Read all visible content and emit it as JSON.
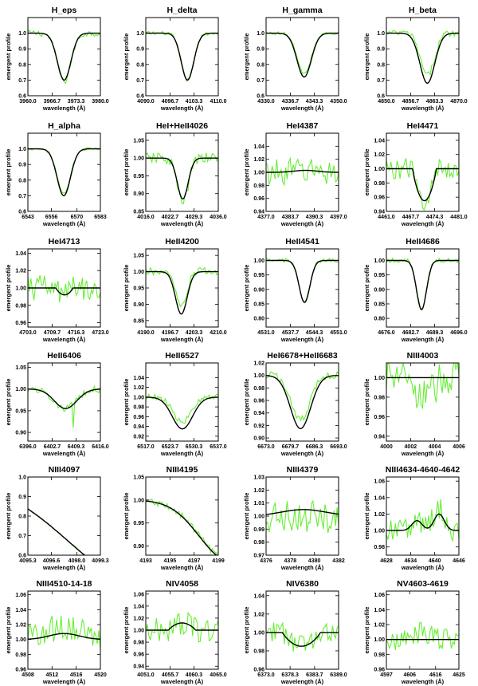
{
  "figure": {
    "xlabel": "wavelength (Å)",
    "ylabel": "emergent profile",
    "observed_color": "#66ee33",
    "model_color": "#000000"
  },
  "chart_data": [
    {
      "type": "line",
      "title": "H_eps",
      "xlim": [
        3960,
        3980
      ],
      "ylim": [
        0.6,
        1.1
      ],
      "xticks": [
        3960,
        3966.7,
        3973.3,
        3980
      ],
      "xticklabels": [
        "3960.0",
        "3966.7",
        "3973.3",
        "3980.0"
      ],
      "yticks": [
        0.6,
        0.7,
        0.8,
        0.9,
        1.0
      ],
      "yticklabels": [
        "0.6",
        "0.7",
        "0.8",
        "0.9",
        "1.0"
      ],
      "model": {
        "center": 3970,
        "depth": 0.3,
        "width": 3.0,
        "type": "abs"
      },
      "obs": {
        "noise": 0.02,
        "offset": -0.01
      }
    },
    {
      "type": "line",
      "title": "H_delta",
      "xlim": [
        4090,
        4110
      ],
      "ylim": [
        0.6,
        1.1
      ],
      "xticks": [
        4090,
        4096.7,
        4103.3,
        4110
      ],
      "xticklabels": [
        "4090.0",
        "4096.7",
        "4103.3",
        "4110.0"
      ],
      "yticks": [
        0.6,
        0.7,
        0.8,
        0.9,
        1.0
      ],
      "yticklabels": [
        "0.6",
        "0.7",
        "0.8",
        "0.9",
        "1.0"
      ],
      "model": {
        "center": 4101.5,
        "depth": 0.3,
        "width": 2.8,
        "type": "abs"
      },
      "obs": {
        "noise": 0.012,
        "offset": 0.0
      }
    },
    {
      "type": "line",
      "title": "H_gamma",
      "xlim": [
        4330,
        4350
      ],
      "ylim": [
        0.6,
        1.1
      ],
      "xticks": [
        4330,
        4336.7,
        4343.3,
        4350
      ],
      "xticklabels": [
        "4330.0",
        "4336.7",
        "4343.3",
        "4350.0"
      ],
      "yticks": [
        0.6,
        0.7,
        0.8,
        0.9,
        1.0
      ],
      "yticklabels": [
        "0.6",
        "0.7",
        "0.8",
        "0.9",
        "1.0"
      ],
      "model": {
        "center": 4340.5,
        "depth": 0.28,
        "width": 3.2,
        "type": "abs"
      },
      "obs": {
        "noise": 0.01,
        "offset": 0.02
      }
    },
    {
      "type": "line",
      "title": "H_beta",
      "xlim": [
        4850,
        4870
      ],
      "ylim": [
        0.6,
        1.1
      ],
      "xticks": [
        4850,
        4856.7,
        4863.3,
        4870
      ],
      "xticklabels": [
        "4850.0",
        "4856.7",
        "4863.3",
        "4870.0"
      ],
      "yticks": [
        0.6,
        0.7,
        0.8,
        0.9,
        1.0
      ],
      "yticklabels": [
        "0.6",
        "0.7",
        "0.8",
        "0.9",
        "1.0"
      ],
      "model": {
        "center": 4861.3,
        "depth": 0.32,
        "width": 3.3,
        "type": "abs"
      },
      "obs": {
        "noise": 0.02,
        "offset": 0.05
      }
    },
    {
      "type": "line",
      "title": "H_alpha",
      "xlim": [
        6543,
        6583
      ],
      "ylim": [
        0.6,
        1.1
      ],
      "xticks": [
        6543,
        6556,
        6570,
        6583
      ],
      "xticklabels": [
        "6543",
        "6556",
        "6570",
        "6583"
      ],
      "yticks": [
        0.6,
        0.7,
        0.8,
        0.9,
        1.0
      ],
      "yticklabels": [
        "0.6",
        "0.7",
        "0.8",
        "0.9",
        "1.0"
      ],
      "model": {
        "center": 6562.8,
        "depth": 0.3,
        "width": 6.0,
        "type": "abs"
      },
      "obs": {
        "noise": 0.008,
        "offset": 0.01
      }
    },
    {
      "type": "line",
      "title": "HeI+HeII4026",
      "xlim": [
        4016,
        4036
      ],
      "ylim": [
        0.85,
        1.07
      ],
      "xticks": [
        4016,
        4022.7,
        4029.3,
        4036
      ],
      "xticklabels": [
        "4016.0",
        "4022.7",
        "4029.3",
        "4036.0"
      ],
      "yticks": [
        0.85,
        0.9,
        0.95,
        1.0,
        1.05
      ],
      "yticklabels": [
        "0.85",
        "0.90",
        "0.95",
        "1.00",
        "1.05"
      ],
      "model": {
        "center": 4026.2,
        "depth": 0.115,
        "width": 2.4,
        "type": "abs"
      },
      "obs": {
        "noise": 0.015,
        "offset": -0.01
      }
    },
    {
      "type": "line",
      "title": "HeI4387",
      "xlim": [
        4377,
        4397
      ],
      "ylim": [
        0.94,
        1.06
      ],
      "xticks": [
        4377,
        4383.7,
        4390.3,
        4397
      ],
      "xticklabels": [
        "4377.0",
        "4383.7",
        "4390.3",
        "4397.0"
      ],
      "yticks": [
        0.94,
        0.96,
        0.98,
        1.0,
        1.02,
        1.04
      ],
      "yticklabels": [
        "0.94",
        "0.96",
        "0.98",
        "1.00",
        "1.02",
        "1.04"
      ],
      "model": {
        "center": 4387.9,
        "depth": -0.003,
        "width": 5.0,
        "type": "abs"
      },
      "obs": {
        "noise": 0.02,
        "offset": 0.0
      }
    },
    {
      "type": "line",
      "title": "HeI4471",
      "xlim": [
        4461,
        4481
      ],
      "ylim": [
        0.94,
        1.05
      ],
      "xticks": [
        4461,
        4467.7,
        4474.3,
        4481
      ],
      "xticklabels": [
        "4461.0",
        "4467.7",
        "4474.3",
        "4481.0"
      ],
      "yticks": [
        0.94,
        0.96,
        0.98,
        1.0,
        1.02,
        1.04
      ],
      "yticklabels": [
        "0.94",
        "0.96",
        "0.98",
        "1.00",
        "1.02",
        "1.04"
      ],
      "model": {
        "center": 4471.5,
        "depth": 0.045,
        "width": 2.5,
        "type": "box"
      },
      "obs": {
        "noise": 0.015,
        "offset": 0.0
      }
    },
    {
      "type": "line",
      "title": "HeI4713",
      "xlim": [
        4703,
        4723
      ],
      "ylim": [
        0.955,
        1.045
      ],
      "xticks": [
        4703,
        4709.7,
        4716.3,
        4723
      ],
      "xticklabels": [
        "4703.0",
        "4709.7",
        "4716.3",
        "4723.0"
      ],
      "yticks": [
        0.96,
        0.98,
        1.0,
        1.02,
        1.04
      ],
      "yticklabels": [
        "0.96",
        "0.98",
        "1.00",
        "1.02",
        "1.04"
      ],
      "model": {
        "center": 4713.1,
        "depth": 0.008,
        "width": 1.8,
        "type": "box"
      },
      "obs": {
        "noise": 0.015,
        "offset": 0.0
      }
    },
    {
      "type": "line",
      "title": "HeII4200",
      "xlim": [
        4190,
        4210
      ],
      "ylim": [
        0.83,
        1.07
      ],
      "xticks": [
        4190,
        4196.7,
        4203.3,
        4210
      ],
      "xticklabels": [
        "4190.0",
        "4196.7",
        "4203.3",
        "4210.0"
      ],
      "yticks": [
        0.85,
        0.9,
        0.95,
        1.0,
        1.05
      ],
      "yticklabels": [
        "0.85",
        "0.90",
        "0.95",
        "1.00",
        "1.05"
      ],
      "model": {
        "center": 4199.8,
        "depth": 0.13,
        "width": 2.6,
        "type": "abs"
      },
      "obs": {
        "noise": 0.012,
        "offset": 0.02
      }
    },
    {
      "type": "line",
      "title": "HeII4541",
      "xlim": [
        4531,
        4551
      ],
      "ylim": [
        0.77,
        1.04
      ],
      "xticks": [
        4531,
        4537.7,
        4544.3,
        4551
      ],
      "xticklabels": [
        "4531.0",
        "4537.7",
        "4544.3",
        "4551.0"
      ],
      "yticks": [
        0.8,
        0.85,
        0.9,
        0.95,
        1.0
      ],
      "yticklabels": [
        "0.80",
        "0.85",
        "0.90",
        "0.95",
        "1.00"
      ],
      "model": {
        "center": 4541.6,
        "depth": 0.145,
        "width": 2.4,
        "type": "abs"
      },
      "obs": {
        "noise": 0.007,
        "offset": 0.0
      }
    },
    {
      "type": "line",
      "title": "HeII4686",
      "xlim": [
        4676,
        4696
      ],
      "ylim": [
        0.77,
        1.04
      ],
      "xticks": [
        4676,
        4682.7,
        4689.3,
        4696
      ],
      "xticklabels": [
        "4676.0",
        "4682.7",
        "4689.3",
        "4696.0"
      ],
      "yticks": [
        0.8,
        0.85,
        0.9,
        0.95,
        1.0
      ],
      "yticklabels": [
        "0.80",
        "0.85",
        "0.90",
        "0.95",
        "1.00"
      ],
      "model": {
        "center": 4685.7,
        "depth": 0.17,
        "width": 2.2,
        "type": "abs"
      },
      "obs": {
        "noise": 0.008,
        "offset": 0.0
      }
    },
    {
      "type": "line",
      "title": "HeII6406",
      "xlim": [
        6396,
        6416
      ],
      "ylim": [
        0.88,
        1.06
      ],
      "xticks": [
        6396,
        6402.7,
        6409.3,
        6416
      ],
      "xticklabels": [
        "6396.0",
        "6402.7",
        "6409.3",
        "6416.0"
      ],
      "yticks": [
        0.9,
        0.95,
        1.0,
        1.05
      ],
      "yticklabels": [
        "0.90",
        "0.95",
        "1.00",
        "1.05"
      ],
      "model": {
        "center": 6406.4,
        "depth": 0.045,
        "width": 5.0,
        "type": "abs"
      },
      "obs": {
        "noise": 0.008,
        "offset": 0.0,
        "spike": {
          "x": 6408.6,
          "depth": 0.06
        }
      }
    },
    {
      "type": "line",
      "title": "HeII6527",
      "xlim": [
        6517,
        6537
      ],
      "ylim": [
        0.91,
        1.07
      ],
      "xticks": [
        6517,
        6523.7,
        6530.3,
        6537
      ],
      "xticklabels": [
        "6517.0",
        "6523.7",
        "6530.3",
        "6537.0"
      ],
      "yticks": [
        0.92,
        0.94,
        0.96,
        0.98,
        1.0,
        1.02,
        1.04
      ],
      "yticklabels": [
        "0.92",
        "0.94",
        "0.96",
        "0.98",
        "1.00",
        "1.02",
        "1.04"
      ],
      "model": {
        "center": 6527.1,
        "depth": 0.065,
        "width": 4.5,
        "type": "abs"
      },
      "obs": {
        "noise": 0.006,
        "offset": 0.015
      }
    },
    {
      "type": "line",
      "title": "HeI6678+HeII6683",
      "xlim": [
        6673,
        6693
      ],
      "ylim": [
        0.895,
        1.02
      ],
      "xticks": [
        6673,
        6679.7,
        6686.3,
        6693
      ],
      "xticklabels": [
        "6673.0",
        "6679.7",
        "6686.3",
        "6693.0"
      ],
      "yticks": [
        0.9,
        0.92,
        0.94,
        0.96,
        0.98,
        1.0,
        1.02
      ],
      "yticklabels": [
        "0.90",
        "0.92",
        "0.94",
        "0.96",
        "0.98",
        "1.00",
        "1.02"
      ],
      "model": {
        "center": 6682.5,
        "depth": 0.085,
        "width": 4.5,
        "type": "abs"
      },
      "obs": {
        "noise": 0.006,
        "offset": 0.015
      }
    },
    {
      "type": "line",
      "title": "NIII4003",
      "xlim": [
        4000,
        4006
      ],
      "ylim": [
        0.935,
        1.015
      ],
      "xticks": [
        4000,
        4002,
        4004,
        4006
      ],
      "xticklabels": [
        "4000",
        "4002",
        "4004",
        "4006"
      ],
      "yticks": [
        0.94,
        0.96,
        0.98,
        1.0
      ],
      "yticklabels": [
        "0.94",
        "0.96",
        "0.98",
        "1.00"
      ],
      "model": {
        "center": 4003,
        "depth": 0.0,
        "width": 1.0,
        "type": "abs"
      },
      "obs": {
        "noise": 0.02,
        "offset": -0.02
      }
    },
    {
      "type": "line",
      "title": "NIII4097",
      "xlim": [
        4095.3,
        4099.3
      ],
      "ylim": [
        0.6,
        1.0
      ],
      "xticks": [
        4095.3,
        4096.6,
        4098.0,
        4099.3
      ],
      "xticklabels": [
        "4095.3",
        "4096.6",
        "4098.0",
        "4099.3"
      ],
      "yticks": [
        0.6,
        0.7,
        0.8,
        0.9,
        1.0
      ],
      "yticklabels": [
        "0.6",
        "0.7",
        "0.8",
        "0.9",
        "1.0"
      ],
      "model": {
        "center": 4101.7,
        "depth": 0.55,
        "width": 4.5,
        "type": "wing"
      },
      "obs": {
        "noise": 0.004,
        "offset": 0.0
      }
    },
    {
      "type": "line",
      "title": "NIII4195",
      "xlim": [
        4193,
        4199
      ],
      "ylim": [
        0.88,
        1.05
      ],
      "xticks": [
        4193,
        4195,
        4197,
        4199
      ],
      "xticklabels": [
        "4193",
        "4195",
        "4197",
        "4199"
      ],
      "yticks": [
        0.9,
        0.95,
        1.0,
        1.05
      ],
      "yticklabels": [
        "0.90",
        "0.95",
        "1.00",
        "1.05"
      ],
      "model": {
        "center": 4199.8,
        "depth": 0.13,
        "width": 2.6,
        "type": "wing"
      },
      "obs": {
        "noise": 0.008,
        "offset": 0.0
      }
    },
    {
      "type": "line",
      "title": "NIII4379",
      "xlim": [
        4376,
        4382
      ],
      "ylim": [
        0.97,
        1.03
      ],
      "xticks": [
        4376,
        4378,
        4380,
        4382
      ],
      "xticklabels": [
        "4376",
        "4378",
        "4380",
        "4382"
      ],
      "yticks": [
        0.97,
        0.98,
        0.99,
        1.0,
        1.01,
        1.02,
        1.03
      ],
      "yticklabels": [
        "0.97",
        "0.98",
        "0.99",
        "1.00",
        "1.01",
        "1.02",
        "1.03"
      ],
      "model": {
        "center": 4379.1,
        "depth": -0.005,
        "width": 3.0,
        "type": "abs"
      },
      "obs": {
        "noise": 0.012,
        "offset": -0.005
      }
    },
    {
      "type": "line",
      "title": "NIII4634-4640-4642",
      "xlim": [
        4628,
        4646
      ],
      "ylim": [
        0.97,
        1.065
      ],
      "xticks": [
        4628,
        4634,
        4640,
        4646
      ],
      "xticklabels": [
        "4628",
        "4634",
        "4640",
        "4646"
      ],
      "yticks": [
        0.98,
        1.0,
        1.02,
        1.04,
        1.06
      ],
      "yticklabels": [
        "0.98",
        "1.00",
        "1.02",
        "1.04",
        "1.06"
      ],
      "model": {
        "center": 4640.6,
        "depth": -0.02,
        "width": 1.8,
        "type": "emis2"
      },
      "obs": {
        "noise": 0.015,
        "offset": 0.01
      }
    },
    {
      "type": "line",
      "title": "NIII4510-14-18",
      "xlim": [
        4508,
        4520
      ],
      "ylim": [
        0.96,
        1.065
      ],
      "xticks": [
        4508,
        4512,
        4516,
        4520
      ],
      "xticklabels": [
        "4508",
        "4512",
        "4516",
        "4520"
      ],
      "yticks": [
        0.96,
        0.98,
        1.0,
        1.02,
        1.04,
        1.06
      ],
      "yticklabels": [
        "0.96",
        "0.98",
        "1.00",
        "1.02",
        "1.04",
        "1.06"
      ],
      "model": {
        "center": 4514,
        "depth": -0.008,
        "width": 4.0,
        "type": "abs"
      },
      "obs": {
        "noise": 0.018,
        "offset": 0.01
      }
    },
    {
      "type": "line",
      "title": "NIV4058",
      "xlim": [
        4051,
        4065
      ],
      "ylim": [
        0.935,
        1.065
      ],
      "xticks": [
        4051,
        4055.7,
        4060.3,
        4065
      ],
      "xticklabels": [
        "4051.0",
        "4055.7",
        "4060.3",
        "4065.0"
      ],
      "yticks": [
        0.94,
        0.96,
        0.98,
        1.0,
        1.02,
        1.04,
        1.06
      ],
      "yticklabels": [
        "0.94",
        "0.96",
        "0.98",
        "1.00",
        "1.02",
        "1.04",
        "1.06"
      ],
      "model": {
        "center": 4058,
        "depth": -0.012,
        "width": 2.0,
        "type": "box"
      },
      "obs": {
        "noise": 0.02,
        "offset": 0.0
      }
    },
    {
      "type": "line",
      "title": "NIV6380",
      "xlim": [
        6373,
        6389
      ],
      "ylim": [
        0.96,
        1.045
      ],
      "xticks": [
        6373,
        6378.3,
        6383.7,
        6389
      ],
      "xticklabels": [
        "6373.0",
        "6378.3",
        "6383.7",
        "6389.0"
      ],
      "yticks": [
        0.96,
        0.98,
        1.0,
        1.02,
        1.04
      ],
      "yticklabels": [
        "0.96",
        "0.98",
        "1.00",
        "1.02",
        "1.04"
      ],
      "model": {
        "center": 6380.8,
        "depth": 0.015,
        "width": 3.2,
        "type": "box"
      },
      "obs": {
        "noise": 0.012,
        "offset": 0.0
      }
    },
    {
      "type": "line",
      "title": "NV4603-4619",
      "xlim": [
        4597,
        4625
      ],
      "ylim": [
        0.96,
        1.065
      ],
      "xticks": [
        4597,
        4606,
        4616,
        4625
      ],
      "xticklabels": [
        "4597",
        "4606",
        "4616",
        "4625"
      ],
      "yticks": [
        0.96,
        0.98,
        1.0,
        1.02,
        1.04,
        1.06
      ],
      "yticklabels": [
        "0.96",
        "0.98",
        "1.00",
        "1.02",
        "1.04",
        "1.06"
      ],
      "model": {
        "center": 4611,
        "depth": 0.0,
        "width": 4.0,
        "type": "abs"
      },
      "obs": {
        "noise": 0.015,
        "offset": 0.01
      }
    }
  ]
}
